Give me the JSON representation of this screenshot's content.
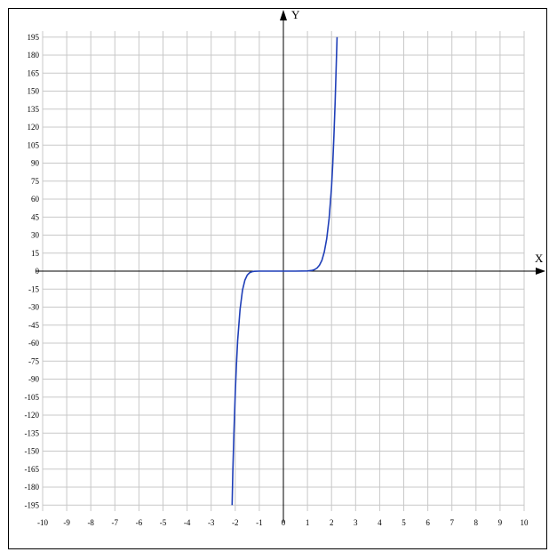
{
  "chart_data": {
    "type": "line",
    "title": "",
    "xlabel": "X",
    "ylabel": "Y",
    "xlim": [
      -10,
      10
    ],
    "ylim": [
      -200,
      200
    ],
    "grid": true,
    "x_ticks": [
      -10,
      -9,
      -8,
      -7,
      -6,
      -5,
      -4,
      -3,
      -2,
      -1,
      0,
      1,
      2,
      3,
      4,
      5,
      6,
      7,
      8,
      9,
      10
    ],
    "y_ticks": [
      195,
      180,
      165,
      150,
      135,
      120,
      105,
      90,
      75,
      60,
      45,
      30,
      15,
      0,
      -15,
      -30,
      -45,
      -60,
      -75,
      -90,
      -105,
      -120,
      -135,
      -150,
      -165,
      -180,
      -195
    ],
    "series": [
      {
        "color": "#1f3fb8",
        "points": [
          [
            -2.13,
            -195
          ],
          [
            -2.1,
            -167
          ],
          [
            -2.05,
            -132
          ],
          [
            -2.0,
            -102
          ],
          [
            -1.95,
            -78
          ],
          [
            -1.9,
            -58
          ],
          [
            -1.8,
            -32
          ],
          [
            -1.7,
            -16
          ],
          [
            -1.6,
            -7.6
          ],
          [
            -1.5,
            -3.3
          ],
          [
            -1.4,
            -1.3
          ],
          [
            -1.3,
            -0.47
          ],
          [
            -1.2,
            -0.15
          ],
          [
            -1.0,
            -0.01
          ],
          [
            -0.5,
            0
          ],
          [
            0,
            0
          ],
          [
            0.5,
            0
          ],
          [
            1.0,
            0.13
          ],
          [
            1.2,
            0.6
          ],
          [
            1.3,
            1.3
          ],
          [
            1.4,
            2.6
          ],
          [
            1.5,
            5
          ],
          [
            1.6,
            9
          ],
          [
            1.7,
            16
          ],
          [
            1.8,
            27
          ],
          [
            1.9,
            44
          ],
          [
            2.0,
            70
          ],
          [
            2.05,
            89
          ],
          [
            2.1,
            113
          ],
          [
            2.15,
            141
          ],
          [
            2.2,
            175
          ],
          [
            2.23,
            195
          ]
        ]
      }
    ]
  }
}
